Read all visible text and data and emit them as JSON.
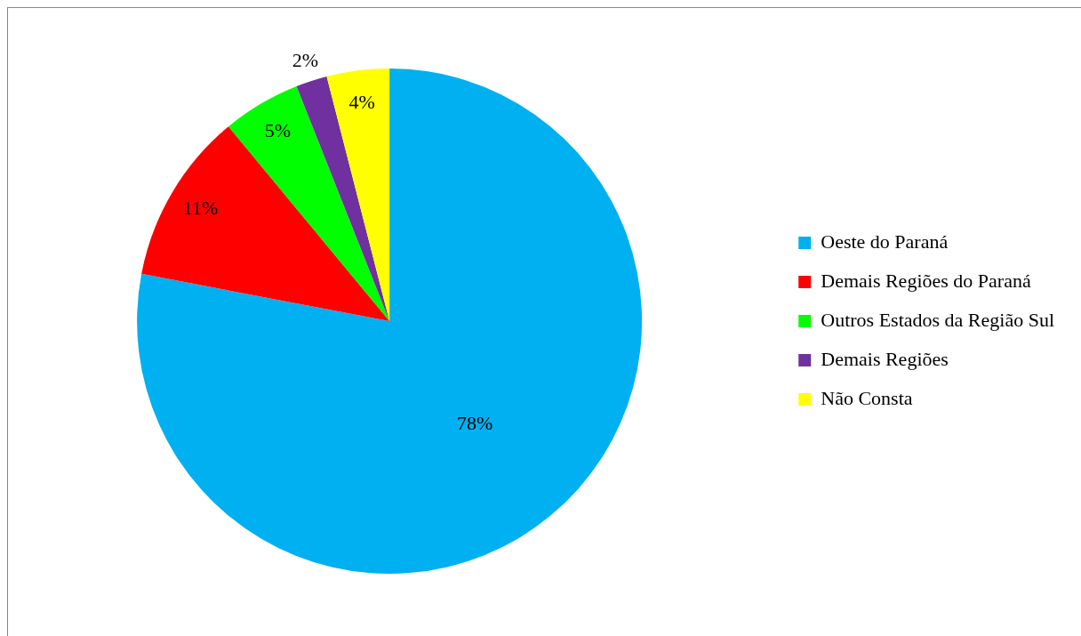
{
  "chart_data": {
    "type": "pie",
    "categories": [
      "Oeste do Paraná",
      "Demais Regiões do Paraná",
      "Outros Estados da Região Sul",
      "Demais Regiões",
      "Não Consta"
    ],
    "values": [
      78,
      11,
      5,
      2,
      4
    ],
    "colors": [
      "#00b0f0",
      "#ff0000",
      "#00ff00",
      "#7030a0",
      "#ffff00"
    ],
    "value_labels": [
      "78%",
      "11%",
      "5%",
      "2%",
      "4%"
    ],
    "legend": "right"
  }
}
